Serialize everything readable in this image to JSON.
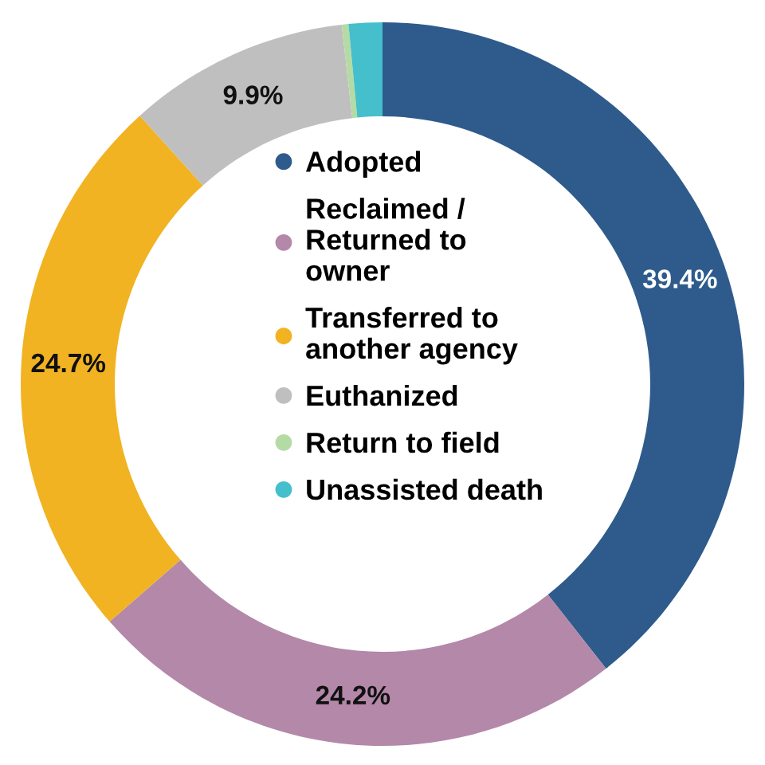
{
  "chart_data": {
    "type": "donut",
    "categories": [
      "Adopted",
      "Reclaimed /\nReturned to\nowner",
      "Transferred to\nanother agency",
      "Euthanized",
      "Return to field",
      "Unassisted death"
    ],
    "values": [
      39.4,
      24.2,
      24.7,
      9.9,
      0.3,
      1.5
    ],
    "colors": [
      "#2e5b8c",
      "#b388a9",
      "#f1b322",
      "#bfbfbf",
      "#b4dba4",
      "#45bfcb"
    ],
    "value_labels": [
      "39.4%",
      "24.2%",
      "24.7%",
      "9.9%",
      null,
      null
    ],
    "legend": "center"
  }
}
